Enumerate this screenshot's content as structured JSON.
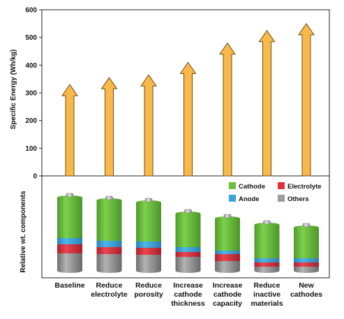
{
  "chart_data": {
    "type": "bar",
    "ylabel": "Specific Energy (Wh/kg)",
    "ylim": [
      0,
      600
    ],
    "yticks": [
      0,
      100,
      200,
      300,
      400,
      500,
      600
    ],
    "categories": [
      [
        "Baseline"
      ],
      [
        "Reduce",
        "electrolyte"
      ],
      [
        "Reduce",
        "porosity"
      ],
      [
        "Increase",
        "cathode",
        "thickness"
      ],
      [
        "Increase",
        "cathode",
        "capacity"
      ],
      [
        "Reduce",
        "inactive",
        "materials"
      ],
      [
        "New",
        "cathodes"
      ]
    ],
    "values": [
      330,
      355,
      365,
      410,
      480,
      525,
      550
    ],
    "bar_color": "#f9b94a",
    "components": {
      "ylabel": "Relative wt. components",
      "legend": [
        {
          "name": "Cathode",
          "color": "#6dbf3e"
        },
        {
          "name": "Electrolyte",
          "color": "#e0323c"
        },
        {
          "name": "Anode",
          "color": "#3ba6de"
        },
        {
          "name": "Others",
          "color": "#9c9c9c"
        }
      ],
      "stacks": [
        {
          "Cathode": 0.58,
          "Anode": 0.09,
          "Electrolyte": 0.13,
          "Others": 0.25
        },
        {
          "Cathode": 0.58,
          "Anode": 0.09,
          "Electrolyte": 0.1,
          "Others": 0.24
        },
        {
          "Cathode": 0.56,
          "Anode": 0.09,
          "Electrolyte": 0.1,
          "Others": 0.23
        },
        {
          "Cathode": 0.48,
          "Anode": 0.07,
          "Electrolyte": 0.07,
          "Others": 0.2
        },
        {
          "Cathode": 0.46,
          "Anode": 0.05,
          "Electrolyte": 0.1,
          "Others": 0.14
        },
        {
          "Cathode": 0.48,
          "Anode": 0.06,
          "Electrolyte": 0.06,
          "Others": 0.06
        },
        {
          "Cathode": 0.44,
          "Anode": 0.06,
          "Electrolyte": 0.06,
          "Others": 0.06
        }
      ]
    }
  }
}
